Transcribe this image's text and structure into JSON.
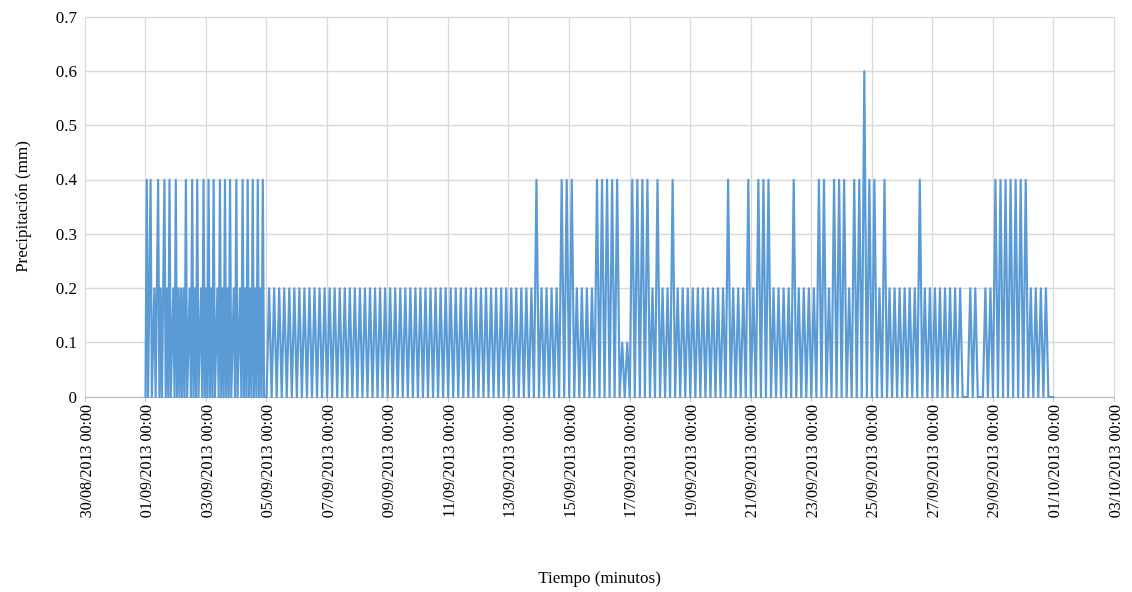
{
  "chart_data": {
    "type": "line",
    "xlabel": "Tiempo (minutos)",
    "ylabel": "Precipitación (mm)",
    "color": "#5b9bd5",
    "marker": "none",
    "line_style": "solid",
    "grid": true,
    "xlim": [
      "2013-08-30T00:00",
      "2013-10-03T00:00"
    ],
    "xticks": [
      {
        "value": "2013-08-30",
        "label": "30/08/2013 00:00"
      },
      {
        "value": "2013-09-01",
        "label": "01/09/2013 00:00"
      },
      {
        "value": "2013-09-03",
        "label": "03/09/2013 00:00"
      },
      {
        "value": "2013-09-05",
        "label": "05/09/2013 00:00"
      },
      {
        "value": "2013-09-07",
        "label": "07/09/2013 00:00"
      },
      {
        "value": "2013-09-09",
        "label": "09/09/2013 00:00"
      },
      {
        "value": "2013-09-11",
        "label": "11/09/2013 00:00"
      },
      {
        "value": "2013-09-13",
        "label": "13/09/2013 00:00"
      },
      {
        "value": "2013-09-15",
        "label": "15/09/2013 00:00"
      },
      {
        "value": "2013-09-17",
        "label": "17/09/2013 00:00"
      },
      {
        "value": "2013-09-19",
        "label": "19/09/2013 00:00"
      },
      {
        "value": "2013-09-21",
        "label": "21/09/2013 00:00"
      },
      {
        "value": "2013-09-23",
        "label": "23/09/2013 00:00"
      },
      {
        "value": "2013-09-25",
        "label": "25/09/2013 00:00"
      },
      {
        "value": "2013-09-27",
        "label": "27/09/2013 00:00"
      },
      {
        "value": "2013-09-29",
        "label": "29/09/2013 00:00"
      },
      {
        "value": "2013-10-01",
        "label": "01/10/2013 00:00"
      },
      {
        "value": "2013-10-03",
        "label": "03/10/2013 00:00"
      }
    ],
    "ylim": [
      0,
      0.7
    ],
    "yticks": [
      0,
      0.1,
      0.2,
      0.3,
      0.4,
      0.5,
      0.6,
      0.7
    ],
    "x": [
      "2013-09-01T00:00",
      "2013-09-01T01:00",
      "2013-09-01T02:00",
      "2013-09-01T03:00",
      "2013-09-01T04:00",
      "2013-09-01T05:00",
      "2013-09-01T07:00",
      "2013-09-01T08:00",
      "2013-09-01T10:00",
      "2013-09-01T11:00",
      "2013-09-01T12:00",
      "2013-09-01T13:00",
      "2013-09-01T15:00",
      "2013-09-01T16:00",
      "2013-09-01T17:00",
      "2013-09-01T18:00",
      "2013-09-01T19:00",
      "2013-09-01T20:00",
      "2013-09-01T22:00",
      "2013-09-01T23:00",
      "2013-09-02T00:00",
      "2013-09-02T01:00",
      "2013-09-02T02:00",
      "2013-09-02T03:00",
      "2013-09-02T04:00",
      "2013-09-02T05:00",
      "2013-09-02T06:00",
      "2013-09-02T07:00",
      "2013-09-02T08:00",
      "2013-09-02T09:00",
      "2013-09-02T11:00",
      "2013-09-02T12:00",
      "2013-09-02T13:00",
      "2013-09-02T14:00",
      "2013-09-02T15:00",
      "2013-09-02T16:00",
      "2013-09-02T17:00",
      "2013-09-02T18:00",
      "2013-09-02T20:00",
      "2013-09-02T21:00",
      "2013-09-02T22:00",
      "2013-09-02T23:00",
      "2013-09-03T00:00",
      "2013-09-03T01:00",
      "2013-09-03T02:00",
      "2013-09-03T03:00",
      "2013-09-03T04:00",
      "2013-09-03T05:00",
      "2013-09-03T06:00",
      "2013-09-03T07:00",
      "2013-09-03T09:00",
      "2013-09-03T10:00",
      "2013-09-03T11:00",
      "2013-09-03T12:00",
      "2013-09-03T13:00",
      "2013-09-03T14:00",
      "2013-09-03T15:00",
      "2013-09-03T16:00",
      "2013-09-03T17:00",
      "2013-09-03T18:00",
      "2013-09-03T19:00",
      "2013-09-03T20:00",
      "2013-09-03T22:00",
      "2013-09-03T23:00",
      "2013-09-04T00:00",
      "2013-09-04T01:00",
      "2013-09-04T03:00",
      "2013-09-04T04:00",
      "2013-09-04T05:00",
      "2013-09-04T06:00",
      "2013-09-04T07:00",
      "2013-09-04T08:00",
      "2013-09-04T09:00",
      "2013-09-04T10:00",
      "2013-09-04T11:00",
      "2013-09-04T12:00",
      "2013-09-04T13:00",
      "2013-09-04T14:00",
      "2013-09-04T15:00",
      "2013-09-04T16:00",
      "2013-09-04T17:00",
      "2013-09-04T18:00",
      "2013-09-04T19:00",
      "2013-09-04T20:00",
      "2013-09-04T21:00",
      "2013-09-04T22:00",
      "2013-09-05T00:00",
      "2013-09-05T02:00",
      "2013-09-05T04:00",
      "2013-09-05T06:00",
      "2013-09-05T08:00",
      "2013-09-05T10:00",
      "2013-09-05T12:00",
      "2013-09-05T14:00",
      "2013-09-05T16:00",
      "2013-09-05T18:00",
      "2013-09-05T20:00",
      "2013-09-05T22:00",
      "2013-09-06T00:00",
      "2013-09-06T02:00",
      "2013-09-06T04:00",
      "2013-09-06T06:00",
      "2013-09-06T08:00",
      "2013-09-06T10:00",
      "2013-09-06T12:00",
      "2013-09-06T14:00",
      "2013-09-06T16:00",
      "2013-09-06T18:00",
      "2013-09-06T20:00",
      "2013-09-06T22:00",
      "2013-09-07T00:00",
      "2013-09-07T02:00",
      "2013-09-07T04:00",
      "2013-09-07T06:00",
      "2013-09-07T08:00",
      "2013-09-07T10:00",
      "2013-09-07T12:00",
      "2013-09-07T14:00",
      "2013-09-07T16:00",
      "2013-09-07T18:00",
      "2013-09-07T20:00",
      "2013-09-07T22:00",
      "2013-09-08T00:00",
      "2013-09-08T02:00",
      "2013-09-08T04:00",
      "2013-09-08T06:00",
      "2013-09-08T08:00",
      "2013-09-08T10:00",
      "2013-09-08T12:00",
      "2013-09-08T14:00",
      "2013-09-08T16:00",
      "2013-09-08T18:00",
      "2013-09-08T20:00",
      "2013-09-08T22:00",
      "2013-09-09T00:00",
      "2013-09-09T02:00",
      "2013-09-09T04:00",
      "2013-09-09T06:00",
      "2013-09-09T08:00",
      "2013-09-09T10:00",
      "2013-09-09T12:00",
      "2013-09-09T14:00",
      "2013-09-09T16:00",
      "2013-09-09T18:00",
      "2013-09-09T20:00",
      "2013-09-09T22:00",
      "2013-09-10T00:00",
      "2013-09-10T02:00",
      "2013-09-10T04:00",
      "2013-09-10T06:00",
      "2013-09-10T08:00",
      "2013-09-10T10:00",
      "2013-09-10T12:00",
      "2013-09-10T14:00",
      "2013-09-10T16:00",
      "2013-09-10T18:00",
      "2013-09-10T20:00",
      "2013-09-10T22:00",
      "2013-09-11T00:00",
      "2013-09-11T02:00",
      "2013-09-11T04:00",
      "2013-09-11T06:00",
      "2013-09-11T08:00",
      "2013-09-11T10:00",
      "2013-09-11T12:00",
      "2013-09-11T14:00",
      "2013-09-11T16:00",
      "2013-09-11T18:00",
      "2013-09-11T20:00",
      "2013-09-11T22:00",
      "2013-09-12T00:00",
      "2013-09-12T02:00",
      "2013-09-12T04:00",
      "2013-09-12T06:00",
      "2013-09-12T08:00",
      "2013-09-12T10:00",
      "2013-09-12T12:00",
      "2013-09-12T14:00",
      "2013-09-12T16:00",
      "2013-09-12T18:00",
      "2013-09-12T20:00",
      "2013-09-12T22:00",
      "2013-09-13T00:00",
      "2013-09-13T02:00",
      "2013-09-13T04:00",
      "2013-09-13T06:00",
      "2013-09-13T08:00",
      "2013-09-13T10:00",
      "2013-09-13T12:00",
      "2013-09-13T14:00",
      "2013-09-13T16:00",
      "2013-09-13T18:00",
      "2013-09-13T20:00",
      "2013-09-13T22:00",
      "2013-09-14T00:00",
      "2013-09-14T02:00",
      "2013-09-14T04:00",
      "2013-09-14T06:00",
      "2013-09-14T08:00",
      "2013-09-14T10:00",
      "2013-09-14T12:00",
      "2013-09-14T14:00",
      "2013-09-14T16:00",
      "2013-09-14T18:00",
      "2013-09-14T20:00",
      "2013-09-14T22:00",
      "2013-09-15T00:00",
      "2013-09-15T02:00",
      "2013-09-15T04:00",
      "2013-09-15T06:00",
      "2013-09-15T08:00",
      "2013-09-15T10:00",
      "2013-09-15T12:00",
      "2013-09-15T14:00",
      "2013-09-15T16:00",
      "2013-09-15T18:00",
      "2013-09-15T20:00",
      "2013-09-15T22:00",
      "2013-09-16T00:00",
      "2013-09-16T02:00",
      "2013-09-16T04:00",
      "2013-09-16T06:00",
      "2013-09-16T08:00",
      "2013-09-16T10:00",
      "2013-09-16T12:00",
      "2013-09-16T14:00",
      "2013-09-16T16:00",
      "2013-09-16T18:00",
      "2013-09-16T20:00",
      "2013-09-16T22:00",
      "2013-09-17T00:00",
      "2013-09-17T02:00",
      "2013-09-17T04:00",
      "2013-09-17T06:00",
      "2013-09-17T08:00",
      "2013-09-17T10:00",
      "2013-09-17T12:00",
      "2013-09-17T14:00",
      "2013-09-17T16:00",
      "2013-09-17T18:00",
      "2013-09-17T20:00",
      "2013-09-17T22:00",
      "2013-09-18T00:00",
      "2013-09-18T02:00",
      "2013-09-18T04:00",
      "2013-09-18T06:00",
      "2013-09-18T08:00",
      "2013-09-18T10:00",
      "2013-09-18T12:00",
      "2013-09-18T14:00",
      "2013-09-18T16:00",
      "2013-09-18T18:00",
      "2013-09-18T20:00",
      "2013-09-18T22:00",
      "2013-09-19T00:00",
      "2013-09-19T02:00",
      "2013-09-19T04:00",
      "2013-09-19T06:00",
      "2013-09-19T08:00",
      "2013-09-19T10:00",
      "2013-09-19T12:00",
      "2013-09-19T14:00",
      "2013-09-19T16:00",
      "2013-09-19T18:00",
      "2013-09-19T20:00",
      "2013-09-19T22:00",
      "2013-09-20T00:00",
      "2013-09-20T02:00",
      "2013-09-20T04:00",
      "2013-09-20T06:00",
      "2013-09-20T08:00",
      "2013-09-20T10:00",
      "2013-09-20T12:00",
      "2013-09-20T14:00",
      "2013-09-20T16:00",
      "2013-09-20T18:00",
      "2013-09-20T20:00",
      "2013-09-20T22:00",
      "2013-09-21T00:00",
      "2013-09-21T02:00",
      "2013-09-21T04:00",
      "2013-09-21T06:00",
      "2013-09-21T08:00",
      "2013-09-21T10:00",
      "2013-09-21T12:00",
      "2013-09-21T14:00",
      "2013-09-21T16:00",
      "2013-09-21T18:00",
      "2013-09-21T20:00",
      "2013-09-21T22:00",
      "2013-09-22T00:00",
      "2013-09-22T02:00",
      "2013-09-22T04:00",
      "2013-09-22T06:00",
      "2013-09-22T08:00",
      "2013-09-22T10:00",
      "2013-09-22T12:00",
      "2013-09-22T14:00",
      "2013-09-22T16:00",
      "2013-09-22T18:00",
      "2013-09-22T20:00",
      "2013-09-22T22:00",
      "2013-09-23T00:00",
      "2013-09-23T02:00",
      "2013-09-23T04:00",
      "2013-09-23T06:00",
      "2013-09-23T08:00",
      "2013-09-23T10:00",
      "2013-09-23T12:00",
      "2013-09-23T14:00",
      "2013-09-23T16:00",
      "2013-09-23T18:00",
      "2013-09-23T20:00",
      "2013-09-23T22:00",
      "2013-09-24T00:00",
      "2013-09-24T02:00",
      "2013-09-24T04:00",
      "2013-09-24T06:00",
      "2013-09-24T08:00",
      "2013-09-24T10:00",
      "2013-09-24T12:00",
      "2013-09-24T14:00",
      "2013-09-24T16:00",
      "2013-09-24T18:00",
      "2013-09-24T20:00",
      "2013-09-24T22:00",
      "2013-09-25T00:00",
      "2013-09-25T02:00",
      "2013-09-25T04:00",
      "2013-09-25T06:00",
      "2013-09-25T08:00",
      "2013-09-25T10:00",
      "2013-09-25T12:00",
      "2013-09-25T14:00",
      "2013-09-25T16:00",
      "2013-09-25T18:00",
      "2013-09-25T20:00",
      "2013-09-25T22:00",
      "2013-09-26T00:00",
      "2013-09-26T02:00",
      "2013-09-26T04:00",
      "2013-09-26T06:00",
      "2013-09-26T08:00",
      "2013-09-26T10:00",
      "2013-09-26T12:00",
      "2013-09-26T14:00",
      "2013-09-26T16:00",
      "2013-09-26T18:00",
      "2013-09-26T20:00",
      "2013-09-26T22:00",
      "2013-09-27T00:00",
      "2013-09-27T02:00",
      "2013-09-27T04:00",
      "2013-09-27T06:00",
      "2013-09-27T08:00",
      "2013-09-27T10:00",
      "2013-09-27T12:00",
      "2013-09-27T14:00",
      "2013-09-27T16:00",
      "2013-09-27T18:00",
      "2013-09-27T20:00",
      "2013-09-27T22:00",
      "2013-09-28T00:00",
      "2013-09-28T02:00",
      "2013-09-28T04:00",
      "2013-09-28T06:00",
      "2013-09-28T08:00",
      "2013-09-28T10:00",
      "2013-09-28T12:00",
      "2013-09-28T14:00",
      "2013-09-28T16:00",
      "2013-09-28T18:00",
      "2013-09-28T20:00",
      "2013-09-28T22:00",
      "2013-09-29T00:00",
      "2013-09-29T02:00",
      "2013-09-29T04:00",
      "2013-09-29T06:00",
      "2013-09-29T08:00",
      "2013-09-29T10:00",
      "2013-09-29T12:00",
      "2013-09-29T14:00",
      "2013-09-29T16:00",
      "2013-09-29T18:00",
      "2013-09-29T20:00",
      "2013-09-29T22:00",
      "2013-09-30T00:00",
      "2013-09-30T02:00",
      "2013-09-30T04:00",
      "2013-09-30T06:00",
      "2013-09-30T08:00",
      "2013-09-30T10:00",
      "2013-09-30T12:00",
      "2013-09-30T14:00",
      "2013-09-30T16:00",
      "2013-09-30T18:00",
      "2013-09-30T20:00",
      "2013-09-30T22:00",
      "2013-10-01T00:00"
    ],
    "values": [
      0,
      0.4,
      0,
      0.2,
      0.4,
      0,
      0.2,
      0,
      0.4,
      0,
      0.2,
      0,
      0.4,
      0,
      0.2,
      0,
      0.4,
      0,
      0.2,
      0,
      0.4,
      0,
      0.2,
      0,
      0.2,
      0,
      0.2,
      0,
      0.4,
      0,
      0.2,
      0,
      0.4,
      0,
      0.2,
      0,
      0.4,
      0,
      0.2,
      0,
      0.4,
      0,
      0.2,
      0,
      0.4,
      0,
      0.2,
      0,
      0.4,
      0,
      0.2,
      0,
      0.4,
      0,
      0.2,
      0,
      0.4,
      0,
      0.2,
      0,
      0.4,
      0,
      0.2,
      0,
      0.4,
      0,
      0.2,
      0,
      0.4,
      0,
      0.2,
      0,
      0.4,
      0,
      0.2,
      0,
      0.4,
      0,
      0.2,
      0,
      0.4,
      0,
      0.2,
      0,
      0.4,
      0,
      0,
      0.2,
      0,
      0.2,
      0,
      0.2,
      0,
      0.2,
      0,
      0.2,
      0,
      0.2,
      0,
      0.2,
      0,
      0.2,
      0,
      0.2,
      0,
      0.2,
      0,
      0.2,
      0,
      0.2,
      0,
      0.2,
      0,
      0.2,
      0,
      0.2,
      0,
      0.2,
      0,
      0.2,
      0,
      0.2,
      0,
      0.2,
      0,
      0.2,
      0,
      0.2,
      0,
      0.2,
      0,
      0.2,
      0,
      0.2,
      0,
      0.2,
      0,
      0.2,
      0,
      0.2,
      0,
      0.2,
      0,
      0.2,
      0,
      0.2,
      0,
      0.2,
      0,
      0.2,
      0,
      0.2,
      0,
      0.2,
      0,
      0.2,
      0,
      0.2,
      0,
      0.2,
      0,
      0.2,
      0,
      0.2,
      0,
      0.2,
      0,
      0.2,
      0,
      0.2,
      0,
      0.2,
      0,
      0.2,
      0,
      0.2,
      0,
      0.2,
      0,
      0.2,
      0,
      0.2,
      0,
      0.2,
      0,
      0.2,
      0,
      0.2,
      0,
      0.2,
      0,
      0.2,
      0,
      0.4,
      0,
      0.2,
      0,
      0.2,
      0,
      0.2,
      0,
      0.2,
      0,
      0.4,
      0,
      0.4,
      0,
      0.4,
      0,
      0.2,
      0,
      0.2,
      0,
      0.2,
      0,
      0.2,
      0,
      0.4,
      0,
      0.4,
      0,
      0.4,
      0,
      0.4,
      0,
      0.4,
      0,
      0.1,
      0,
      0.1,
      0,
      0.4,
      0,
      0.4,
      0,
      0.4,
      0,
      0.4,
      0,
      0.2,
      0,
      0.4,
      0,
      0.2,
      0,
      0.2,
      0,
      0.4,
      0,
      0.2,
      0,
      0.2,
      0,
      0.2,
      0,
      0.2,
      0,
      0.2,
      0,
      0.2,
      0,
      0.2,
      0,
      0.2,
      0,
      0.2,
      0,
      0.2,
      0,
      0.4,
      0,
      0.2,
      0,
      0.2,
      0,
      0.2,
      0,
      0.4,
      0,
      0.2,
      0,
      0.4,
      0,
      0.4,
      0,
      0.4,
      0,
      0.2,
      0,
      0.2,
      0,
      0.2,
      0,
      0.2,
      0,
      0.4,
      0,
      0.2,
      0,
      0.2,
      0,
      0.2,
      0,
      0.2,
      0,
      0.4,
      0,
      0.4,
      0,
      0.2,
      0,
      0.4,
      0,
      0.4,
      0,
      0.4,
      0,
      0.2,
      0,
      0.4,
      0,
      0.4,
      0,
      0.6,
      0,
      0.4,
      0,
      0.4,
      0,
      0.2,
      0,
      0.4,
      0,
      0.2,
      0,
      0.2,
      0,
      0.2,
      0,
      0.2,
      0,
      0.2,
      0,
      0.2,
      0,
      0.4,
      0,
      0.2,
      0,
      0.2,
      0,
      0.2,
      0,
      0.2,
      0,
      0.2,
      0,
      0.2,
      0,
      0.2,
      0,
      0.2,
      0,
      0,
      0,
      0.2,
      0,
      0.2,
      0,
      0,
      0,
      0.2,
      0,
      0.2,
      0,
      0.4,
      0,
      0.4,
      0,
      0.4,
      0,
      0.4,
      0,
      0.4,
      0,
      0.4,
      0,
      0.4,
      0,
      0.2,
      0,
      0.2,
      0,
      0.2,
      0,
      0.2,
      0,
      0,
      0
    ]
  }
}
